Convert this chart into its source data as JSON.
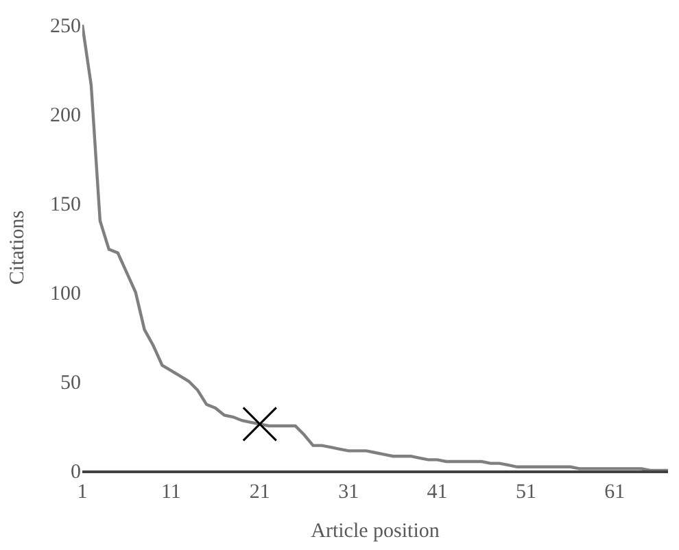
{
  "chart_data": {
    "type": "line",
    "xlabel": "Article position",
    "ylabel": "Citations",
    "xlim": [
      1,
      67
    ],
    "xticks": [
      1,
      11,
      21,
      31,
      41,
      51,
      61
    ],
    "ylim": [
      0,
      250
    ],
    "yticks": [
      0,
      50,
      100,
      150,
      200,
      250
    ],
    "series": [
      {
        "color": "#7f7f7f",
        "marker": "none",
        "line_style": "solid",
        "x": [
          1,
          2,
          3,
          4,
          5,
          6,
          7,
          8,
          9,
          10,
          11,
          12,
          13,
          14,
          15,
          16,
          17,
          18,
          19,
          20,
          21,
          22,
          23,
          24,
          25,
          26,
          27,
          28,
          29,
          30,
          31,
          32,
          33,
          34,
          35,
          36,
          37,
          38,
          39,
          40,
          41,
          42,
          43,
          44,
          45,
          46,
          47,
          48,
          49,
          50,
          51,
          52,
          53,
          54,
          55,
          56,
          57,
          58,
          59,
          60,
          61,
          62,
          63,
          64,
          65,
          66,
          67
        ],
        "values": [
          250,
          216,
          140,
          124,
          122,
          111,
          100,
          79,
          70,
          59,
          56,
          53,
          50,
          45,
          37,
          35,
          31,
          30,
          28,
          27,
          26,
          25,
          25,
          25,
          25,
          20,
          14,
          14,
          13,
          12,
          11,
          11,
          11,
          10,
          9,
          8,
          8,
          8,
          7,
          6,
          6,
          5,
          5,
          5,
          5,
          5,
          4,
          4,
          3,
          2,
          2,
          2,
          2,
          2,
          2,
          2,
          1,
          1,
          1,
          1,
          1,
          1,
          1,
          1,
          0,
          0,
          0
        ]
      },
      {
        "type": "scatter",
        "color": "#000000",
        "marker": "cross",
        "x": [
          21
        ],
        "values": [
          26
        ]
      }
    ]
  }
}
